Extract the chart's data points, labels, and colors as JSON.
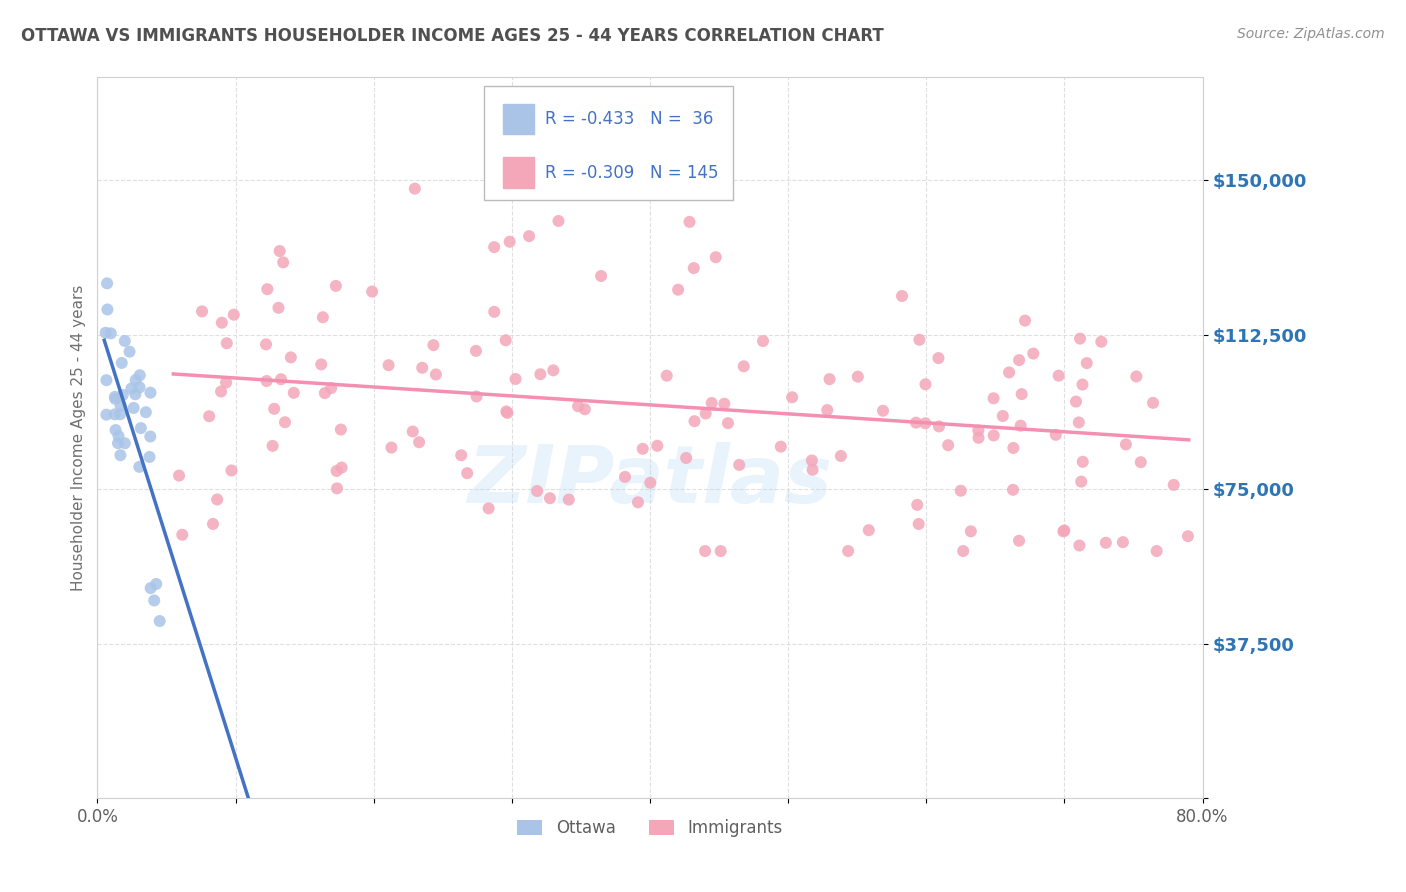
{
  "title": "OTTAWA VS IMMIGRANTS HOUSEHOLDER INCOME AGES 25 - 44 YEARS CORRELATION CHART",
  "source": "Source: ZipAtlas.com",
  "ylabel": "Householder Income Ages 25 - 44 years",
  "xlim": [
    0.0,
    0.8
  ],
  "ylim": [
    0,
    175000
  ],
  "yticks": [
    0,
    37500,
    75000,
    112500,
    150000
  ],
  "ytick_labels": [
    "",
    "$37,500",
    "$75,000",
    "$112,500",
    "$150,000"
  ],
  "watermark": "ZIPatlas",
  "ottawa_color": "#aac4e8",
  "immigrants_color": "#f4a7b9",
  "ottawa_line_color": "#4472c4",
  "immigrants_line_color": "#f48fb1",
  "title_color": "#404040",
  "source_color": "#808080",
  "axis_label_color": "#707070",
  "legend_text_color": "#4472c4",
  "background_color": "#ffffff",
  "legend_R_ottawa": "R = -0.433",
  "legend_N_ottawa": "N =  36",
  "legend_R_immigrants": "R = -0.309",
  "legend_N_immigrants": "N = 145"
}
